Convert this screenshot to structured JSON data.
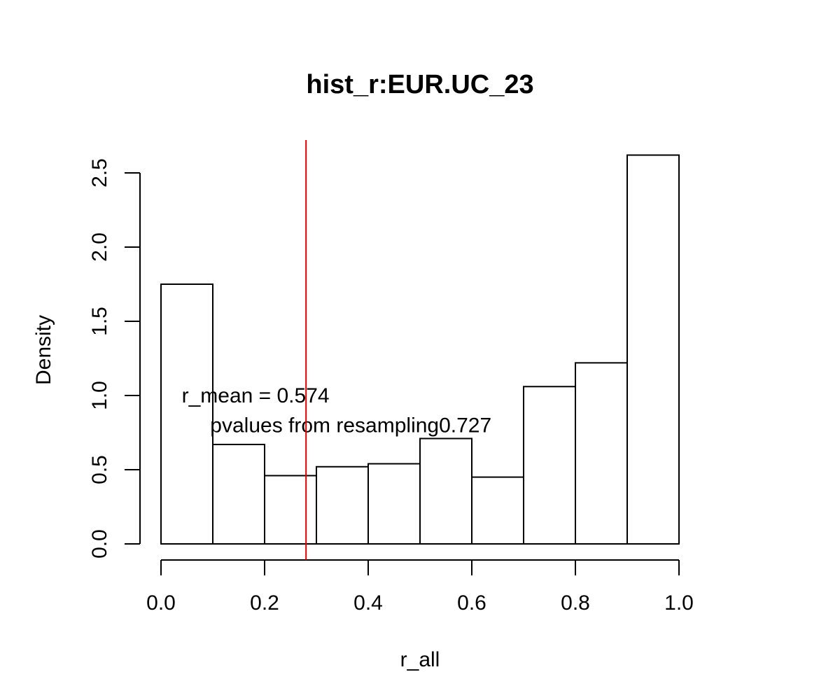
{
  "chart_data": {
    "type": "bar",
    "title": "hist_r:EUR.UC_23",
    "xlabel": "r_all",
    "ylabel": "Density",
    "bins": [
      {
        "start": 0.0,
        "end": 0.1,
        "density": 1.75
      },
      {
        "start": 0.1,
        "end": 0.2,
        "density": 0.67
      },
      {
        "start": 0.2,
        "end": 0.3,
        "density": 0.46
      },
      {
        "start": 0.3,
        "end": 0.4,
        "density": 0.52
      },
      {
        "start": 0.4,
        "end": 0.5,
        "density": 0.54
      },
      {
        "start": 0.5,
        "end": 0.6,
        "density": 0.71
      },
      {
        "start": 0.6,
        "end": 0.7,
        "density": 0.45
      },
      {
        "start": 0.7,
        "end": 0.8,
        "density": 1.06
      },
      {
        "start": 0.8,
        "end": 0.9,
        "density": 1.22
      },
      {
        "start": 0.9,
        "end": 1.0,
        "density": 2.62
      }
    ],
    "xlim": [
      0.0,
      1.0
    ],
    "ylim": [
      0.0,
      2.5
    ],
    "x_ticks": [
      0.0,
      0.2,
      0.4,
      0.6,
      0.8,
      1.0
    ],
    "x_tick_labels": [
      "0.0",
      "0.2",
      "0.4",
      "0.6",
      "0.8",
      "1.0"
    ],
    "y_ticks": [
      0.0,
      0.5,
      1.0,
      1.5,
      2.0,
      2.5
    ],
    "y_tick_labels": [
      "0.0",
      "0.5",
      "1.0",
      "1.5",
      "2.0",
      "2.5"
    ],
    "vline": {
      "x": 0.28,
      "color": "#dd0000"
    },
    "annotations": [
      {
        "text": "r_mean = 0.574",
        "x": 0.04,
        "y": 1.0
      },
      {
        "text": "pvalues from resampling0.727",
        "x": 0.095,
        "y": 0.8
      }
    ],
    "grid": false,
    "bar_fill": "#ffffff",
    "bar_stroke": "#000000"
  }
}
